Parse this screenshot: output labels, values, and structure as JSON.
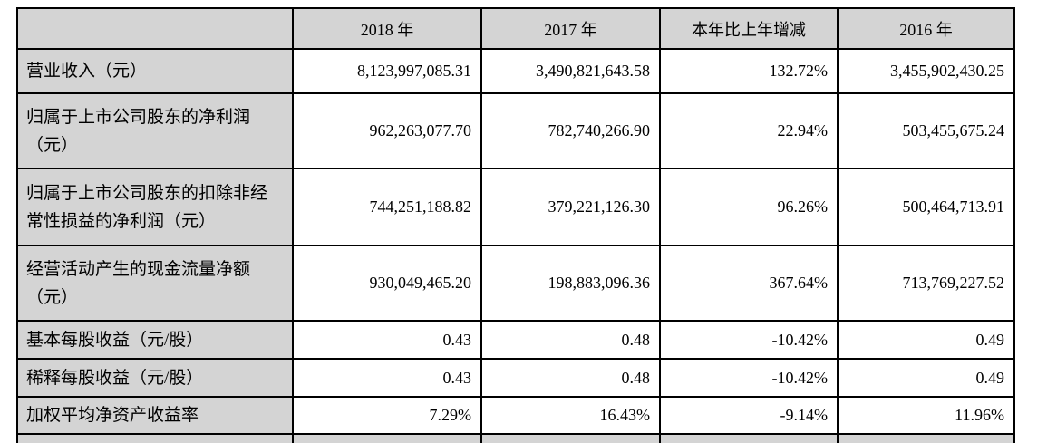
{
  "table": {
    "header": {
      "col0": "",
      "cols": [
        "2018 年",
        "2017 年",
        "本年比上年增减",
        "2016 年"
      ]
    },
    "rows": [
      {
        "label": "营业收入（元）",
        "values": [
          "8,123,997,085.31",
          "3,490,821,643.58",
          "132.72%",
          "3,455,902,430.25"
        ]
      },
      {
        "label": "归属于上市公司股东的净利润\n（元）",
        "values": [
          "962,263,077.70",
          "782,740,266.90",
          "22.94%",
          "503,455,675.24"
        ]
      },
      {
        "label": "归属于上市公司股东的扣除非经\n常性损益的净利润（元）",
        "values": [
          "744,251,188.82",
          "379,221,126.30",
          "96.26%",
          "500,464,713.91"
        ]
      },
      {
        "label": "经营活动产生的现金流量净额\n（元）",
        "values": [
          "930,049,465.20",
          "198,883,096.36",
          "367.64%",
          "713,769,227.52"
        ]
      },
      {
        "label": "基本每股收益（元/股）",
        "values": [
          "0.43",
          "0.48",
          "-10.42%",
          "0.49"
        ]
      },
      {
        "label": "稀释每股收益（元/股）",
        "values": [
          "0.43",
          "0.48",
          "-10.42%",
          "0.49"
        ]
      },
      {
        "label": "加权平均净资产收益率",
        "values": [
          "7.29%",
          "16.43%",
          "-9.14%",
          "11.96%"
        ]
      }
    ],
    "colors": {
      "header_bg": "#d4d4d4",
      "label_bg": "#d4d4d4",
      "cell_bg": "#ffffff",
      "border": "#000000"
    }
  }
}
